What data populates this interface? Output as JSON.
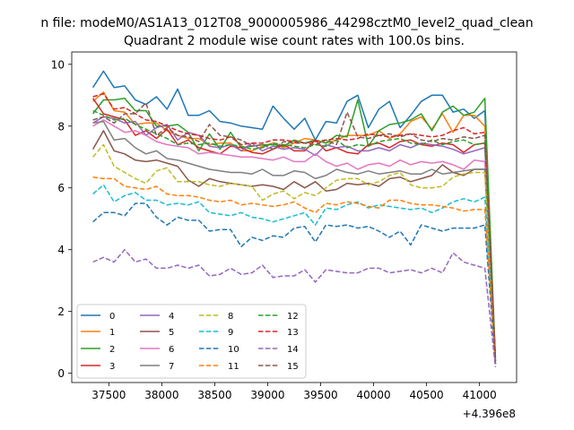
{
  "figure": {
    "suptitle": "n file: modeM0/AS1A13_012T08_9000005986_44298cztM0_level2_quad_clean"
  },
  "chart_data": {
    "type": "line",
    "title": "Quadrant 2 module wise count rates with 100.0s bins.",
    "xlabel": "",
    "ylabel": "",
    "x_offset_label": "+4.396e8",
    "xlim": [
      37150,
      41350
    ],
    "ylim": [
      -0.3,
      10.4
    ],
    "xticks": [
      37500,
      38000,
      38500,
      39000,
      39500,
      40000,
      40500,
      41000
    ],
    "xtick_labels": [
      "37500",
      "38000",
      "38500",
      "39000",
      "39500",
      "40000",
      "40500",
      "41000"
    ],
    "yticks": [
      0,
      2,
      4,
      6,
      8,
      10
    ],
    "ytick_labels": [
      "0",
      "2",
      "4",
      "6",
      "8",
      "10"
    ],
    "grid": false,
    "legend_placement": "lower-left",
    "legend_columns": 4,
    "x": [
      37350,
      37450,
      37550,
      37650,
      37750,
      37850,
      37950,
      38050,
      38150,
      38250,
      38350,
      38450,
      38550,
      38650,
      38750,
      38850,
      38950,
      39050,
      39150,
      39250,
      39350,
      39450,
      39550,
      39650,
      39750,
      39850,
      39950,
      40050,
      40150,
      40250,
      40350,
      40450,
      40550,
      40650,
      40750,
      40850,
      40950,
      41050,
      41150
    ],
    "series": [
      {
        "name": "0",
        "color": "#1f77b4",
        "dash": "solid",
        "values": [
          9.25,
          9.78,
          9.25,
          9.3,
          8.85,
          8.7,
          8.95,
          8.55,
          9.2,
          8.35,
          8.35,
          8.5,
          8.15,
          8.1,
          8.0,
          7.95,
          7.9,
          8.65,
          8.25,
          7.9,
          8.25,
          7.55,
          8.15,
          8.1,
          8.8,
          9.0,
          7.95,
          8.55,
          8.8,
          7.95,
          8.35,
          8.8,
          9.0,
          9.0,
          8.45,
          8.55,
          8.25,
          8.5,
          0.4
        ]
      },
      {
        "name": "1",
        "color": "#ff7f0e",
        "dash": "solid",
        "values": [
          8.8,
          9.1,
          8.5,
          8.45,
          8.05,
          8.1,
          8.1,
          7.85,
          7.7,
          7.6,
          7.6,
          7.4,
          7.45,
          7.45,
          7.2,
          7.2,
          7.35,
          7.45,
          7.3,
          7.45,
          7.6,
          7.55,
          7.45,
          7.55,
          7.7,
          7.7,
          7.7,
          7.85,
          7.6,
          7.75,
          8.15,
          8.3,
          7.9,
          8.4,
          7.8,
          8.35,
          8.35,
          8.0,
          0.5
        ]
      },
      {
        "name": "2",
        "color": "#2ca02c",
        "dash": "solid",
        "values": [
          8.4,
          8.85,
          8.85,
          8.9,
          8.5,
          8.5,
          8.0,
          8.0,
          8.05,
          7.8,
          7.2,
          7.75,
          7.25,
          7.8,
          7.3,
          7.35,
          7.4,
          7.4,
          7.35,
          7.55,
          7.45,
          7.55,
          7.45,
          7.7,
          7.65,
          8.85,
          7.35,
          7.85,
          8.05,
          8.1,
          8.2,
          8.4,
          7.85,
          8.45,
          8.65,
          8.35,
          8.45,
          8.9,
          0.5
        ]
      },
      {
        "name": "3",
        "color": "#d62728",
        "dash": "solid",
        "values": [
          8.9,
          8.4,
          8.3,
          8.2,
          7.7,
          7.85,
          7.6,
          7.9,
          7.4,
          7.55,
          7.3,
          7.2,
          7.1,
          7.35,
          7.3,
          7.15,
          7.1,
          7.25,
          7.4,
          7.2,
          7.2,
          7.55,
          7.2,
          7.3,
          7.15,
          7.1,
          7.4,
          7.45,
          7.3,
          7.5,
          7.55,
          7.4,
          7.35,
          7.45,
          7.4,
          7.15,
          7.4,
          7.45,
          0.4
        ]
      },
      {
        "name": "4",
        "color": "#9467bd",
        "dash": "solid",
        "values": [
          8.1,
          8.3,
          8.25,
          8.1,
          8.15,
          7.7,
          7.95,
          8.05,
          7.55,
          7.8,
          7.7,
          7.35,
          7.3,
          7.4,
          7.2,
          7.45,
          7.2,
          7.35,
          7.25,
          7.3,
          7.25,
          7.05,
          7.4,
          7.3,
          7.35,
          7.2,
          7.2,
          7.3,
          7.2,
          7.4,
          7.3,
          7.45,
          7.4,
          7.35,
          7.25,
          7.1,
          7.2,
          7.3,
          0.3
        ]
      },
      {
        "name": "5",
        "color": "#8c564b",
        "dash": "solid",
        "values": [
          7.25,
          7.85,
          7.2,
          7.1,
          6.9,
          6.85,
          6.9,
          6.8,
          6.7,
          6.25,
          6.05,
          6.3,
          6.2,
          6.15,
          6.1,
          6.05,
          6.1,
          6.05,
          5.95,
          6.2,
          6.0,
          6.2,
          5.9,
          5.95,
          6.15,
          6.1,
          6.15,
          6.05,
          6.3,
          6.35,
          6.2,
          6.3,
          6.4,
          6.75,
          6.5,
          6.4,
          6.6,
          6.6,
          0.3
        ]
      },
      {
        "name": "6",
        "color": "#e377c2",
        "dash": "solid",
        "values": [
          8.0,
          8.2,
          8.0,
          7.8,
          7.85,
          7.7,
          7.5,
          7.4,
          7.35,
          7.3,
          7.1,
          7.15,
          7.1,
          7.05,
          7.0,
          7.0,
          6.95,
          6.9,
          7.0,
          6.85,
          6.85,
          7.1,
          6.85,
          6.7,
          6.8,
          6.6,
          6.75,
          6.8,
          6.7,
          6.9,
          6.75,
          6.85,
          6.8,
          6.85,
          6.75,
          6.6,
          6.9,
          6.85,
          0.3
        ]
      },
      {
        "name": "7",
        "color": "#7f7f7f",
        "dash": "solid",
        "values": [
          8.1,
          8.15,
          7.55,
          7.6,
          7.3,
          7.1,
          7.2,
          6.95,
          6.9,
          6.8,
          6.7,
          6.6,
          6.55,
          6.5,
          6.5,
          6.45,
          6.6,
          6.4,
          6.4,
          6.55,
          6.5,
          6.3,
          6.4,
          6.6,
          6.5,
          6.45,
          6.55,
          6.45,
          6.5,
          6.55,
          6.45,
          6.45,
          6.6,
          6.45,
          6.5,
          6.55,
          6.6,
          6.6,
          0.3
        ]
      },
      {
        "name": "8",
        "color": "#bcbd22",
        "dash": "dashed",
        "values": [
          7.0,
          7.4,
          6.7,
          6.5,
          6.3,
          6.15,
          6.55,
          6.65,
          6.2,
          6.2,
          6.2,
          6.1,
          6.05,
          6.15,
          6.1,
          6.05,
          5.6,
          5.8,
          5.9,
          5.65,
          5.85,
          5.75,
          6.0,
          6.25,
          6.3,
          6.3,
          6.1,
          6.2,
          6.4,
          6.5,
          6.1,
          6.0,
          6.0,
          6.05,
          6.35,
          6.45,
          6.5,
          6.5,
          0.3
        ]
      },
      {
        "name": "9",
        "color": "#17becf",
        "dash": "dashed",
        "values": [
          5.8,
          6.1,
          5.55,
          5.75,
          5.85,
          5.6,
          5.6,
          5.45,
          5.5,
          5.45,
          5.55,
          5.2,
          5.15,
          5.1,
          5.2,
          5.05,
          5.0,
          4.9,
          5.0,
          5.1,
          5.2,
          4.8,
          5.35,
          5.3,
          5.45,
          5.55,
          5.35,
          5.45,
          5.4,
          5.35,
          5.3,
          5.35,
          5.2,
          5.35,
          5.55,
          5.65,
          5.55,
          5.7,
          0.3
        ]
      },
      {
        "name": "10",
        "color": "#1f77b4",
        "dash": "dashed",
        "values": [
          4.9,
          5.2,
          5.2,
          5.1,
          5.5,
          5.5,
          5.05,
          4.8,
          5.05,
          4.95,
          4.95,
          4.6,
          4.65,
          4.65,
          4.1,
          4.4,
          4.3,
          4.45,
          4.4,
          4.7,
          4.75,
          4.25,
          4.8,
          4.75,
          4.8,
          4.7,
          4.75,
          4.6,
          4.4,
          4.6,
          4.15,
          4.8,
          4.7,
          4.6,
          4.7,
          4.7,
          4.7,
          4.8,
          0.3
        ]
      },
      {
        "name": "11",
        "color": "#ff7f0e",
        "dash": "dashed",
        "values": [
          6.35,
          6.3,
          6.3,
          6.05,
          6.0,
          5.95,
          6.05,
          5.8,
          5.75,
          5.75,
          5.7,
          5.6,
          5.55,
          5.6,
          5.45,
          5.5,
          5.45,
          5.4,
          5.45,
          5.55,
          5.35,
          5.2,
          5.5,
          5.45,
          5.55,
          5.5,
          5.4,
          5.35,
          5.6,
          5.6,
          5.5,
          5.45,
          5.45,
          5.4,
          5.35,
          5.25,
          5.3,
          5.3,
          0.4
        ]
      },
      {
        "name": "12",
        "color": "#2ca02c",
        "dash": "dashed",
        "values": [
          8.5,
          8.35,
          8.2,
          8.25,
          8.05,
          7.9,
          7.75,
          7.6,
          7.4,
          7.45,
          7.4,
          7.45,
          7.35,
          7.4,
          7.35,
          7.25,
          7.3,
          7.45,
          7.4,
          7.35,
          7.3,
          7.4,
          7.35,
          7.55,
          7.3,
          7.4,
          7.35,
          7.5,
          7.55,
          7.6,
          7.45,
          7.4,
          7.55,
          7.4,
          7.5,
          7.55,
          7.4,
          7.45,
          0.4
        ]
      },
      {
        "name": "13",
        "color": "#d62728",
        "dash": "dashed",
        "values": [
          8.95,
          9.05,
          8.55,
          8.6,
          8.4,
          8.2,
          8.15,
          8.0,
          7.85,
          7.75,
          7.7,
          7.6,
          7.55,
          7.65,
          7.4,
          7.45,
          7.45,
          7.55,
          7.55,
          7.5,
          7.45,
          7.5,
          7.55,
          7.6,
          7.55,
          7.6,
          7.75,
          7.7,
          7.65,
          7.7,
          7.75,
          7.7,
          7.65,
          7.7,
          7.85,
          7.95,
          7.75,
          7.8,
          0.4
        ]
      },
      {
        "name": "14",
        "color": "#9467bd",
        "dash": "dashed",
        "values": [
          3.6,
          3.75,
          3.6,
          4.0,
          3.6,
          3.7,
          3.4,
          3.4,
          3.5,
          3.4,
          3.5,
          3.15,
          3.2,
          3.4,
          3.2,
          3.25,
          3.5,
          3.1,
          3.15,
          3.15,
          3.35,
          2.95,
          3.35,
          3.3,
          3.25,
          3.25,
          3.4,
          3.4,
          3.25,
          3.3,
          3.35,
          3.25,
          3.4,
          3.25,
          3.9,
          3.6,
          3.5,
          3.4,
          0.2
        ]
      },
      {
        "name": "15",
        "color": "#8c564b",
        "dash": "dashed",
        "values": [
          8.2,
          8.3,
          8.1,
          8.4,
          8.4,
          8.75,
          7.7,
          7.95,
          7.7,
          7.65,
          7.5,
          8.05,
          7.7,
          7.65,
          7.55,
          7.35,
          7.4,
          7.25,
          7.5,
          7.45,
          7.45,
          7.4,
          7.55,
          7.4,
          8.45,
          7.65,
          7.6,
          7.7,
          7.75,
          7.65,
          7.75,
          7.55,
          7.5,
          7.6,
          7.55,
          7.65,
          7.6,
          7.7,
          0.5
        ]
      }
    ]
  }
}
